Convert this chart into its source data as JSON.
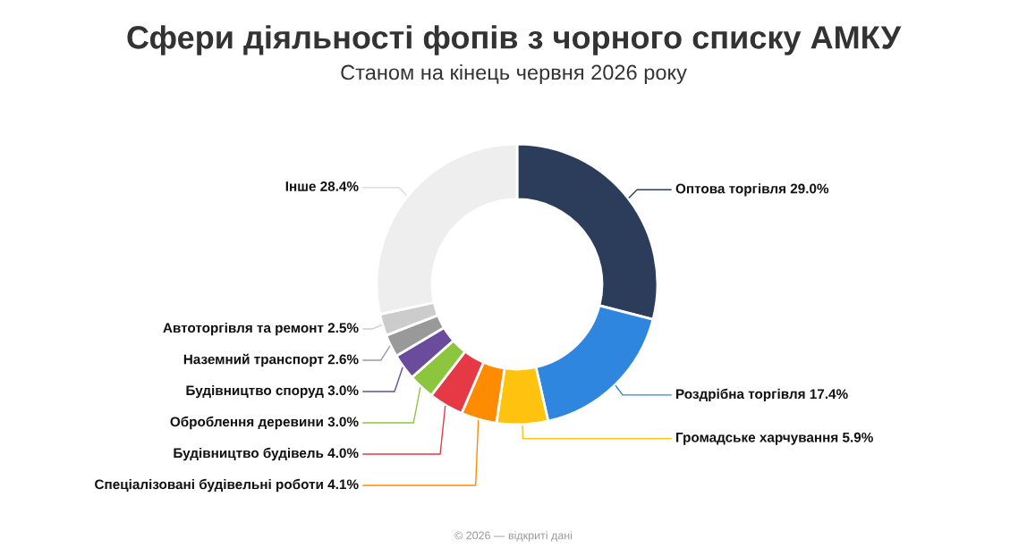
{
  "chart_data": {
    "type": "donut",
    "title": "Сфери діяльності фопів з чорного списку АМКУ",
    "subtitle": "Станом на кінець червня 2026 року",
    "categories": [
      "Оптова торгівля",
      "Роздрібна торгівля",
      "Громадське харчування",
      "Спеціалізовані будівельні роботи",
      "Будівництво будівель",
      "Оброблення деревини",
      "Будівництво споруд",
      "Наземний транспорт",
      "Автоторгівля та ремонт",
      "Інше"
    ],
    "values": [
      29.0,
      17.4,
      5.9,
      4.1,
      4.0,
      3.0,
      3.0,
      2.6,
      2.5,
      28.4
    ],
    "colors": [
      "#2c3d5c",
      "#2e86de",
      "#ffc20e",
      "#ff8c00",
      "#e63946",
      "#8cc63f",
      "#6a4c9c",
      "#999999",
      "#cccccc",
      "#eeeeee"
    ],
    "value_labels": [
      "29.0%",
      "17.4%",
      "5.9%",
      "4.1%",
      "4.0%",
      "3.0%",
      "3.0%",
      "2.6%",
      "2.5%",
      "28.4%"
    ],
    "annotations": [
      "© 2026 — відкриті дані"
    ]
  }
}
